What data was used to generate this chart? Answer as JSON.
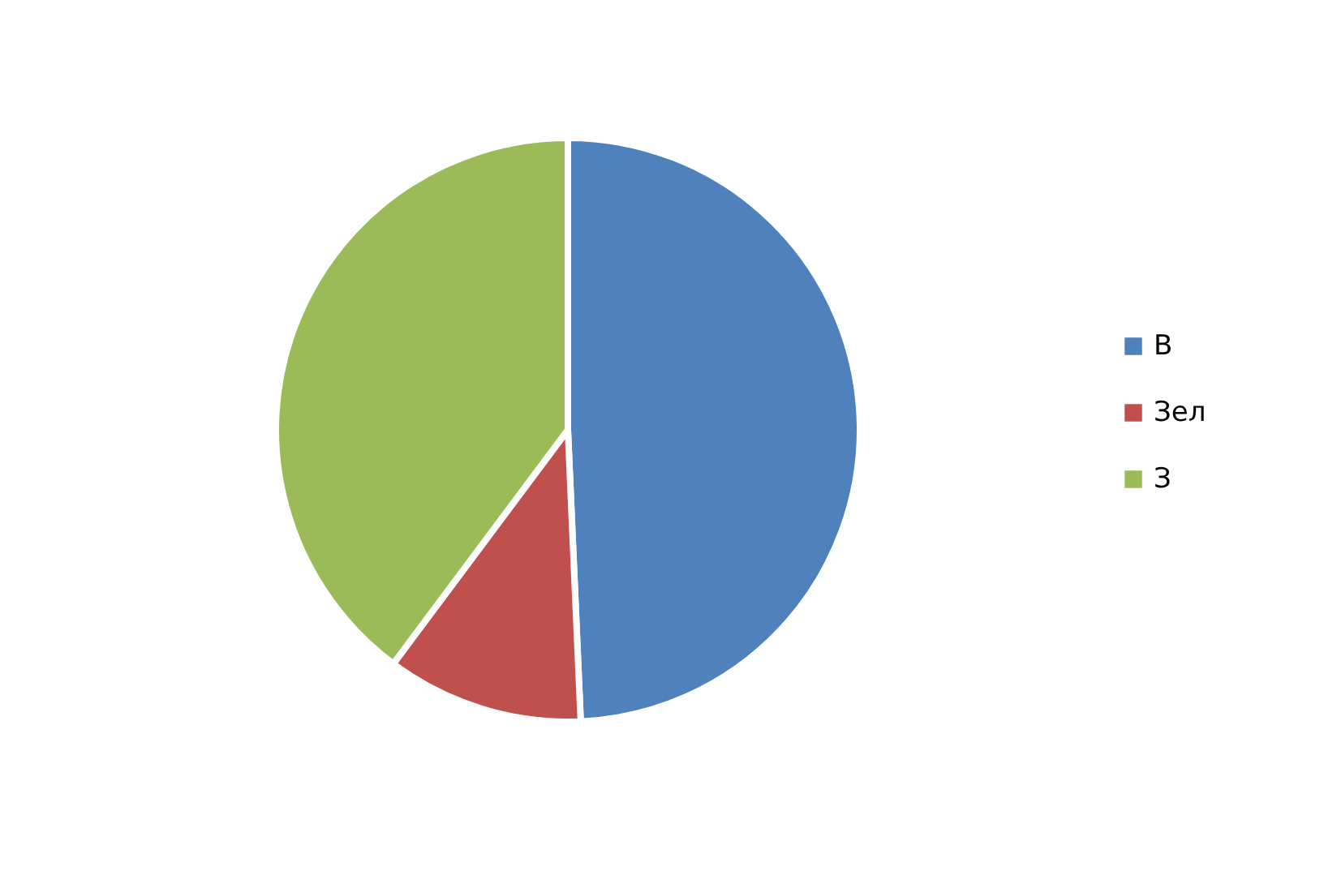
{
  "chart_data": {
    "type": "pie",
    "categories": [
      "В",
      "Зел",
      "З"
    ],
    "values": [
      49.3,
      10.9,
      39.8
    ],
    "colors": [
      "#4f81bd",
      "#c0504d",
      "#9bbb59"
    ],
    "legend": "right"
  }
}
